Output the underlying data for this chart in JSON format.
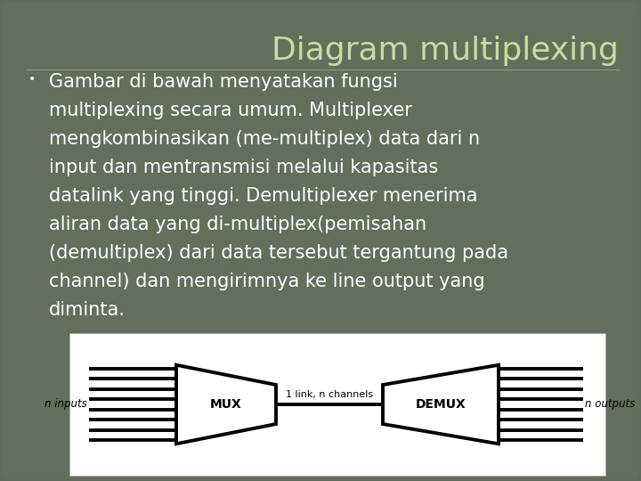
{
  "title": "Diagram multiplexing",
  "title_color": "#c8dca0",
  "title_fontsize": 26,
  "bg_color": "#606b58",
  "bg_color_inner": "#636e5b",
  "text_color": "#ffffff",
  "bullet_lines": [
    "Gambar di bawah menyatakan fungsi",
    "multiplexing secara umum. Multiplexer",
    "mengkombinasikan (me-multiplex) data dari n",
    "input dan mentransmisi melalui kapasitas",
    "datalink yang tinggi. Demultiplexer menerima",
    "aliran data yang di-multiplex(pemisahan",
    "(demultiplex) dari data tersebut tergantung pada",
    "channel) dan mengirimnya ke line output yang",
    "diminta."
  ],
  "text_fontsize": 15,
  "text_linespacing": 1.85,
  "diagram_bg": "#ffffff",
  "mux_label": "MUX",
  "demux_label": "DEMUX",
  "link_label": "1 link, n channels",
  "n_inputs_label": "n inputs",
  "n_outputs_label": "n outputs",
  "n_lines": 8,
  "lw_thick": 2.8,
  "bullet_char": "•"
}
